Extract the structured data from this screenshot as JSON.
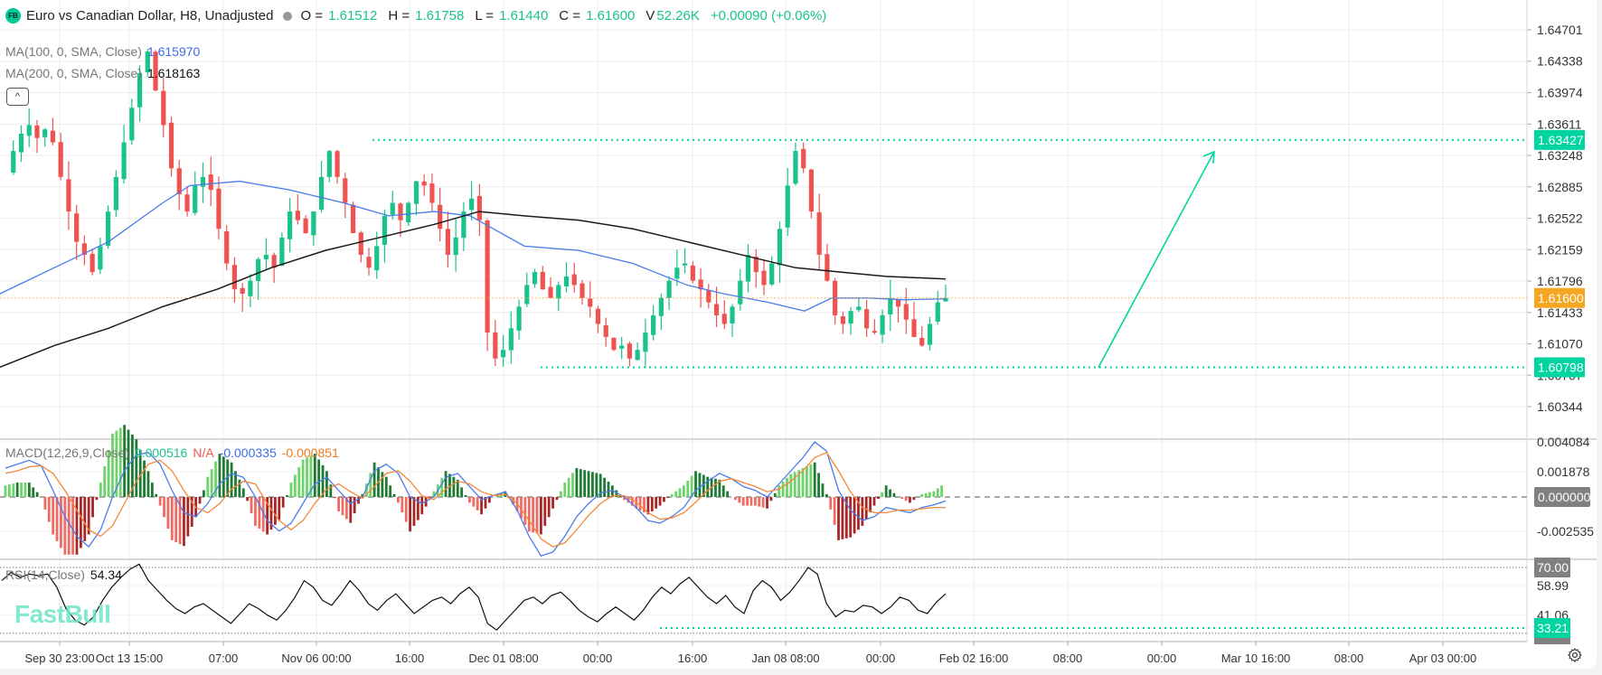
{
  "header": {
    "logo": "FB",
    "title": "Euro vs Canadian Dollar, H8, Unadjusted",
    "status_dot_color": "#999999",
    "o_label": "O =",
    "o_value": "1.61512",
    "h_label": "H =",
    "h_value": "1.61758",
    "l_label": "L =",
    "l_value": "1.61440",
    "c_label": "C =",
    "c_value": "1.61600",
    "v_label": "V",
    "v_value": "52.26K",
    "change": "+0.00090 (+0.06%)"
  },
  "indicators": {
    "ma100": {
      "label": "MA(100, 0, SMA, Close)",
      "value": "1.615970",
      "color": "#3d6ae8"
    },
    "ma200": {
      "label": "MA(200, 0, SMA, Close)",
      "value": "1.618163",
      "color": "#111111"
    },
    "macd": {
      "label": "MACD(12,26,9,Close)",
      "hist": "0.000516",
      "na": "N/A",
      "macd": "-0.000335",
      "signal": "-0.000851"
    },
    "rsi": {
      "label": "RSI(14,Close)",
      "value": "54.34"
    }
  },
  "collapse_icon": "^",
  "watermark": "FastBull",
  "colors": {
    "up": "#19c38a",
    "down": "#ef5350",
    "accent": "#00d4a0",
    "last_price": "#f5a623",
    "ma100": "#4a7bea",
    "ma200": "#1a1a1a",
    "macd": "#4a7bea",
    "signal": "#f5883a"
  },
  "price_axis": {
    "ticks": [
      "1.64701",
      "1.64338",
      "1.63974",
      "1.63611",
      "1.63248",
      "1.62885",
      "1.62522",
      "1.62159",
      "1.61796",
      "1.61433",
      "1.61070",
      "1.60707",
      "1.60344"
    ],
    "badges": [
      {
        "value": "1.63427",
        "color": "#00d4a0"
      },
      {
        "value": "1.61600",
        "color": "#f5a623"
      },
      {
        "value": "1.60798",
        "color": "#00d4a0"
      }
    ]
  },
  "macd_axis": {
    "ticks": [
      "0.004084",
      "0.001878",
      "-0.002535"
    ],
    "zero_badge": "0.000000"
  },
  "rsi_axis": {
    "ticks": [
      "58.99",
      "41.06"
    ],
    "badges": [
      {
        "value": "70.00",
        "color": "#808080"
      },
      {
        "value": "33.21",
        "color": "#00d4a0"
      }
    ]
  },
  "time_axis": [
    "Sep 30 23:00",
    "Oct 13 15:00",
    "07:00",
    "Nov 06 00:00",
    "16:00",
    "Dec 01 08:00",
    "00:00",
    "16:00",
    "Jan 08 08:00",
    "00:00",
    "Feb 02 16:00",
    "08:00",
    "00:00",
    "Mar 10 16:00",
    "08:00",
    "Apr 03 00:00"
  ],
  "chart_data": {
    "type": "candlestick",
    "title": "Euro vs Canadian Dollar, H8, Unadjusted",
    "symbol": "EURCAD",
    "timeframe": "H8",
    "last": {
      "open": 1.61512,
      "high": 1.61758,
      "low": 1.6144,
      "close": 1.616,
      "volume": "52.26K",
      "change": 0.0009,
      "change_pct": 0.06
    },
    "ylim": [
      1.601,
      1.649
    ],
    "x_labels": [
      "Sep 30 23:00",
      "Oct 13 15:00",
      "07:00",
      "Nov 06 00:00",
      "16:00",
      "Dec 01 08:00",
      "00:00",
      "16:00",
      "Jan 08 08:00",
      "00:00",
      "Feb 02 16:00",
      "08:00",
      "00:00",
      "Mar 10 16:00",
      "08:00",
      "Apr 03 00:00"
    ],
    "close_path": [
      1.6305,
      1.633,
      1.635,
      1.636,
      1.6345,
      1.6355,
      1.634,
      1.63,
      1.626,
      1.6225,
      1.621,
      1.619,
      1.622,
      1.626,
      1.63,
      1.634,
      1.638,
      1.642,
      1.6445,
      1.64,
      1.636,
      1.631,
      1.628,
      1.626,
      1.629,
      1.63,
      1.6285,
      1.624,
      1.62,
      1.617,
      1.6165,
      1.618,
      1.6205,
      1.621,
      1.6195,
      1.623,
      1.626,
      1.625,
      1.6235,
      1.626,
      1.63,
      1.633,
      1.63,
      1.627,
      1.6235,
      1.621,
      1.6195,
      1.622,
      1.6255,
      1.627,
      1.625,
      1.627,
      1.6295,
      1.629,
      1.627,
      1.624,
      1.621,
      1.623,
      1.626,
      1.6275,
      1.625,
      1.612,
      1.609,
      1.61,
      1.6125,
      1.615,
      1.6175,
      1.619,
      1.617,
      1.616,
      1.6175,
      1.6185,
      1.6175,
      1.616,
      1.615,
      1.613,
      1.6115,
      1.61,
      1.6105,
      1.609,
      1.61,
      1.612,
      1.614,
      1.616,
      1.618,
      1.6195,
      1.62,
      1.618,
      1.617,
      1.6155,
      1.614,
      1.613,
      1.615,
      1.618,
      1.621,
      1.619,
      1.6175,
      1.62,
      1.624,
      1.629,
      1.633,
      1.631,
      1.626,
      1.621,
      1.618,
      1.614,
      1.613,
      1.6145,
      1.615,
      1.6125,
      1.612,
      1.614,
      1.616,
      1.615,
      1.6135,
      1.6115,
      1.6105,
      1.613,
      1.6155,
      1.616
    ],
    "ma100_path": [
      [
        0,
        1.6165
      ],
      [
        60,
        1.6195
      ],
      [
        120,
        1.6225
      ],
      [
        180,
        1.627
      ],
      [
        210,
        1.629
      ],
      [
        265,
        1.6295
      ],
      [
        320,
        1.6285
      ],
      [
        380,
        1.627
      ],
      [
        430,
        1.6255
      ],
      [
        480,
        1.626
      ],
      [
        520,
        1.6255
      ],
      [
        580,
        1.622
      ],
      [
        640,
        1.6215
      ],
      [
        700,
        1.62
      ],
      [
        760,
        1.6175
      ],
      [
        800,
        1.6165
      ],
      [
        850,
        1.6155
      ],
      [
        890,
        1.6145
      ],
      [
        920,
        1.616
      ],
      [
        960,
        1.616
      ],
      [
        1000,
        1.6158
      ],
      [
        1046,
        1.6159
      ]
    ],
    "ma200_path": [
      [
        0,
        1.608
      ],
      [
        60,
        1.6105
      ],
      [
        120,
        1.6125
      ],
      [
        180,
        1.615
      ],
      [
        240,
        1.617
      ],
      [
        300,
        1.6195
      ],
      [
        360,
        1.6215
      ],
      [
        420,
        1.623
      ],
      [
        480,
        1.6245
      ],
      [
        530,
        1.626
      ],
      [
        580,
        1.6255
      ],
      [
        640,
        1.625
      ],
      [
        700,
        1.624
      ],
      [
        760,
        1.6225
      ],
      [
        820,
        1.621
      ],
      [
        880,
        1.6195
      ],
      [
        930,
        1.619
      ],
      [
        980,
        1.6185
      ],
      [
        1046,
        1.6182
      ]
    ],
    "horizontal_levels": [
      {
        "value": 1.63427,
        "style": "dotted",
        "color": "#00d4a0",
        "from_x_label": "Nov 06"
      },
      {
        "value": 1.60798,
        "style": "dotted",
        "color": "#00d4a0",
        "from_x_label": "Dec 01"
      },
      {
        "value": 1.616,
        "style": "dotted",
        "color": "#f5a623",
        "label": "last price"
      }
    ],
    "annotations": [
      {
        "type": "arrow",
        "color": "#00d4a0",
        "from": [
          1.60798,
          "after Feb 02"
        ],
        "to": [
          1.633,
          "near Mar 10"
        ],
        "meaning": "projected rise from support to resistance"
      }
    ],
    "macd": {
      "params": "12,26,9,Close",
      "histogram_last": 0.000516,
      "macd_last": -0.000335,
      "signal_last": -0.000851,
      "ylim": [
        -0.0045,
        0.0045
      ],
      "ticks": [
        0.004084,
        0.001878,
        0.0,
        -0.002535
      ],
      "macd_path": [
        0.0022,
        0.0025,
        0.0028,
        0.0024,
        0.0005,
        -0.0015,
        -0.003,
        -0.0038,
        -0.0025,
        0.0,
        0.002,
        0.0032,
        0.0034,
        0.0025,
        0.0005,
        -0.0012,
        -0.0015,
        -0.0005,
        0.001,
        0.0018,
        0.0015,
        0.0,
        -0.0018,
        -0.0026,
        -0.002,
        -0.0005,
        0.001,
        0.0015,
        0.0005,
        -0.0005,
        0.0,
        0.002,
        0.0025,
        0.0018,
        0.0,
        -0.0005,
        0.0,
        0.0015,
        0.0018,
        0.0008,
        -0.0002,
        0.0001,
        0.0004,
        -0.001,
        -0.003,
        -0.0045,
        -0.0042,
        -0.003,
        -0.0015,
        -0.0005,
        0.0003,
        0.0005,
        0.0,
        -0.0008,
        -0.0018,
        -0.002,
        -0.0015,
        -0.0008,
        0.0005,
        0.0012,
        0.0018,
        0.0014,
        0.0008,
        0.0005,
        0.0,
        0.001,
        0.002,
        0.003,
        0.0042,
        0.0035,
        0.0005,
        -0.001,
        -0.0018,
        -0.0015,
        -0.0008,
        -0.001,
        -0.0012,
        -0.0008,
        -0.0006,
        -0.0003
      ],
      "signal_path": [
        0.0018,
        0.002,
        0.0023,
        0.0024,
        0.0018,
        0.0005,
        -0.001,
        -0.0025,
        -0.003,
        -0.0022,
        -0.0005,
        0.0012,
        0.0025,
        0.0028,
        0.002,
        0.0005,
        -0.0008,
        -0.0012,
        -0.0005,
        0.0006,
        0.0012,
        0.001,
        -0.0005,
        -0.0018,
        -0.0025,
        -0.0018,
        -0.0005,
        0.0006,
        0.001,
        0.0004,
        -0.0001,
        0.0008,
        0.0018,
        0.002,
        0.0012,
        0.0001,
        -0.0002,
        0.0006,
        0.0012,
        0.001,
        0.0004,
        0.0001,
        0.0002,
        -0.0005,
        -0.0018,
        -0.0032,
        -0.0038,
        -0.0035,
        -0.0025,
        -0.0014,
        -0.0005,
        0.0001,
        0.0001,
        -0.0004,
        -0.0012,
        -0.0017,
        -0.0016,
        -0.0012,
        -0.0004,
        0.0005,
        0.0012,
        0.0014,
        0.0011,
        0.0008,
        0.0004,
        0.0006,
        0.0012,
        0.002,
        0.003,
        0.0034,
        0.002,
        0.0004,
        -0.0008,
        -0.0012,
        -0.0012,
        -0.001,
        -0.001,
        -0.0009,
        -0.0008,
        -0.0008
      ]
    },
    "rsi": {
      "params": "14,Close",
      "last": 54.34,
      "levels": [
        70.0,
        33.21
      ],
      "ticks": [
        58.99,
        41.06
      ],
      "path": [
        62,
        67,
        64,
        66,
        65,
        66,
        58,
        45,
        38,
        35,
        40,
        50,
        58,
        64,
        69,
        72,
        62,
        56,
        50,
        45,
        42,
        46,
        48,
        44,
        40,
        36,
        42,
        48,
        45,
        41,
        38,
        44,
        52,
        62,
        58,
        50,
        47,
        54,
        62,
        56,
        48,
        44,
        50,
        54,
        48,
        42,
        46,
        50,
        52,
        48,
        54,
        58,
        52,
        36,
        32,
        38,
        44,
        50,
        52,
        48,
        53,
        55,
        50,
        44,
        40,
        37,
        42,
        46,
        42,
        38,
        44,
        52,
        58,
        54,
        60,
        64,
        58,
        52,
        48,
        53,
        46,
        42,
        56,
        62,
        58,
        50,
        55,
        62,
        70,
        66,
        48,
        40,
        44,
        43,
        47,
        46,
        42,
        46,
        52,
        50,
        44,
        42,
        49,
        54
      ]
    }
  }
}
